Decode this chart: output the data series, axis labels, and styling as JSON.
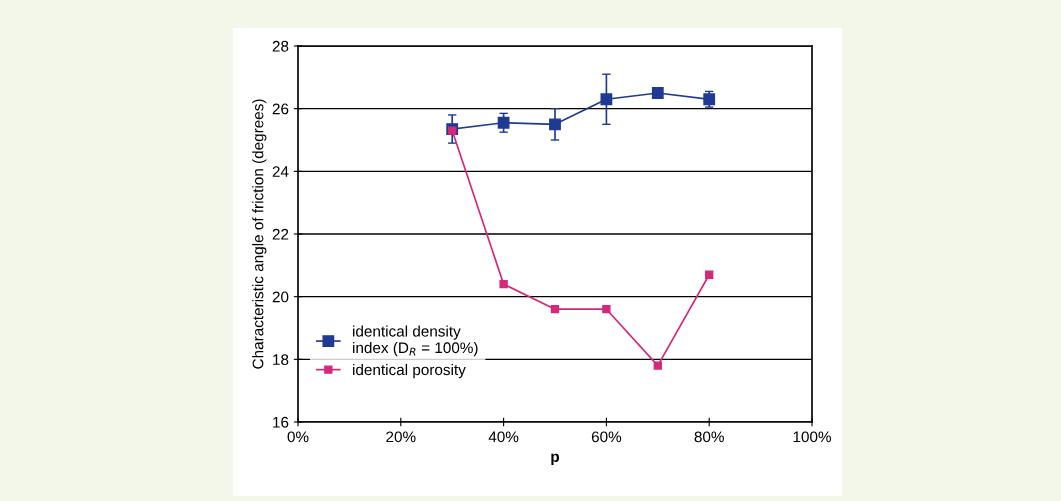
{
  "chart_data": {
    "type": "line",
    "xlabel": "p",
    "ylabel": "Characteristic angle of friction (degrees)",
    "x": [
      30,
      40,
      50,
      60,
      70,
      80
    ],
    "series": [
      {
        "name": "identical density\nindex (D$_{R}$ = 100%)",
        "color": "#1f3a93",
        "values": [
          25.35,
          25.55,
          25.5,
          26.3,
          26.5,
          26.3
        ],
        "errors": [
          0.45,
          0.3,
          0.5,
          0.8,
          null,
          0.25
        ]
      },
      {
        "name": "identical porosity",
        "color": "#d6287a",
        "values": [
          25.3,
          20.4,
          19.6,
          19.6,
          17.8,
          20.7
        ]
      }
    ],
    "xlim": [
      0,
      100
    ],
    "ylim": [
      16,
      28
    ],
    "xticks": [
      {
        "value": 0,
        "label": "0%"
      },
      {
        "value": 20,
        "label": "20%"
      },
      {
        "value": 40,
        "label": "40%"
      },
      {
        "value": 60,
        "label": "60%"
      },
      {
        "value": 80,
        "label": "80%"
      },
      {
        "value": 100,
        "label": "100%"
      }
    ],
    "yticks": [
      16,
      18,
      20,
      22,
      24,
      26,
      28
    ],
    "grid": "y",
    "legend": "bottom left",
    "marker": "square",
    "line_style": "solid"
  }
}
